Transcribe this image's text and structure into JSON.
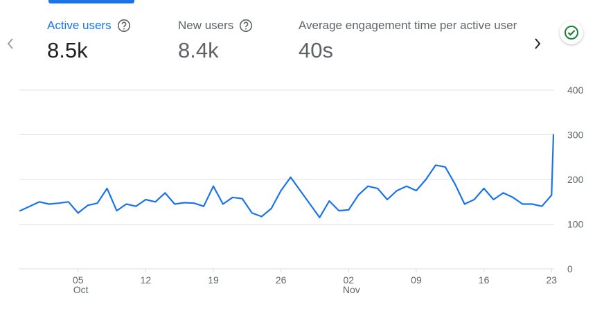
{
  "metrics": [
    {
      "label": "Active users",
      "value": "8.5k",
      "active": true
    },
    {
      "label": "New users",
      "value": "8.4k",
      "active": false
    },
    {
      "label": "Average engagement time per active user",
      "value": "40s",
      "active": false
    }
  ],
  "icons": {
    "prev": "chevron-left-icon",
    "next": "chevron-right-icon",
    "help": "help-circle-icon",
    "status": "check-circle-icon"
  },
  "colors": {
    "accent": "#1a73e8",
    "line": "#1a73e8",
    "grid": "#e0e0e0",
    "status": "#188038"
  },
  "chart_data": {
    "type": "line",
    "title": "",
    "xlabel": "",
    "ylabel": "",
    "ylim": [
      0,
      400
    ],
    "y_ticks": [
      "0",
      "100",
      "200",
      "300",
      "400"
    ],
    "y_axis_position": "right",
    "grid": true,
    "x_start_date": "2023-09-29",
    "x_ticks": [
      {
        "date": "2023-10-05",
        "label": "05",
        "sublabel": "Oct"
      },
      {
        "date": "2023-10-12",
        "label": "12",
        "sublabel": ""
      },
      {
        "date": "2023-10-19",
        "label": "19",
        "sublabel": ""
      },
      {
        "date": "2023-10-26",
        "label": "26",
        "sublabel": ""
      },
      {
        "date": "2023-11-02",
        "label": "02",
        "sublabel": "Nov"
      },
      {
        "date": "2023-11-09",
        "label": "09",
        "sublabel": ""
      },
      {
        "date": "2023-11-16",
        "label": "16",
        "sublabel": ""
      },
      {
        "date": "2023-11-23",
        "label": "23",
        "sublabel": ""
      }
    ],
    "series": [
      {
        "name": "",
        "x": [
          "2023-09-29",
          "2023-09-30",
          "2023-10-01",
          "2023-10-02",
          "2023-10-03",
          "2023-10-04",
          "2023-10-05",
          "2023-10-06",
          "2023-10-07",
          "2023-10-08",
          "2023-10-09",
          "2023-10-10",
          "2023-10-11",
          "2023-10-12",
          "2023-10-13",
          "2023-10-14",
          "2023-10-15",
          "2023-10-16",
          "2023-10-17",
          "2023-10-18",
          "2023-10-19",
          "2023-10-20",
          "2023-10-21",
          "2023-10-22",
          "2023-10-23",
          "2023-10-24",
          "2023-10-25",
          "2023-10-26",
          "2023-10-27",
          "2023-10-28",
          "2023-10-29",
          "2023-10-30",
          "2023-10-31",
          "2023-11-01",
          "2023-11-02",
          "2023-11-03",
          "2023-11-04",
          "2023-11-05",
          "2023-11-06",
          "2023-11-07",
          "2023-11-08",
          "2023-11-09",
          "2023-11-10",
          "2023-11-11",
          "2023-11-12",
          "2023-11-13",
          "2023-11-14",
          "2023-11-15",
          "2023-11-16",
          "2023-11-17",
          "2023-11-18",
          "2023-11-19",
          "2023-11-20",
          "2023-11-21",
          "2023-11-22",
          "2023-11-23",
          "2023-11-24",
          "2023-11-25"
        ],
        "values": [
          130,
          140,
          150,
          145,
          147,
          150,
          125,
          142,
          147,
          180,
          130,
          145,
          140,
          155,
          150,
          170,
          145,
          148,
          147,
          140,
          185,
          145,
          160,
          157,
          125,
          117,
          135,
          175,
          205,
          175,
          145,
          115,
          152,
          130,
          132,
          165,
          185,
          180,
          155,
          175,
          185,
          175,
          200,
          232,
          228,
          190,
          145,
          155,
          180,
          155,
          170,
          160,
          145,
          145,
          140,
          165,
          300,
          300
        ]
      }
    ]
  }
}
